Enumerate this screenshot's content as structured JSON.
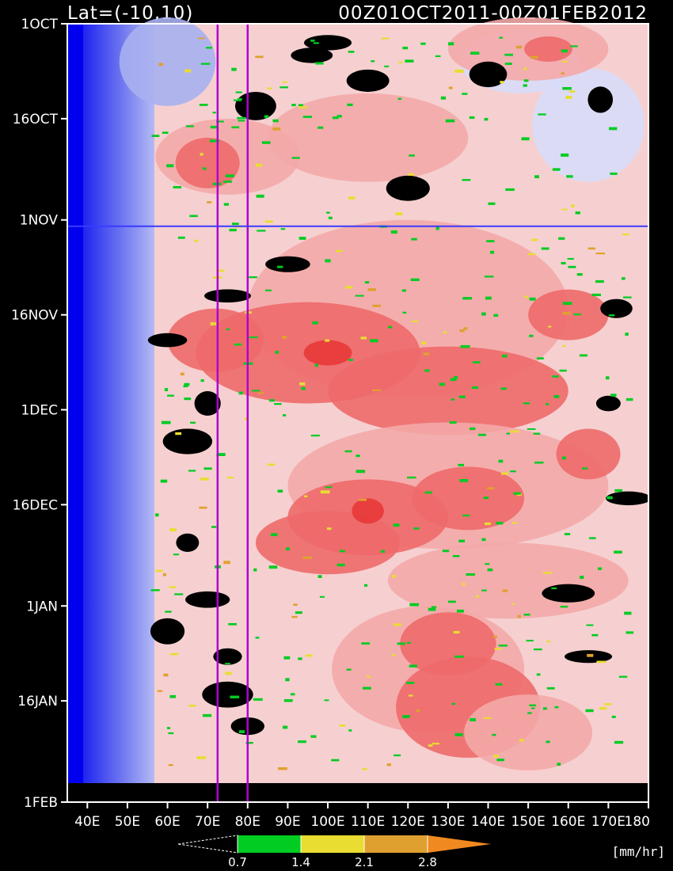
{
  "chart_data": {
    "type": "heatmap",
    "title_left": "Lat=(-10,10)",
    "title_right": "00Z01OCT2011-00Z01FEB2012",
    "x_ticks": [
      "40E",
      "50E",
      "60E",
      "70E",
      "80E",
      "90E",
      "100E",
      "110E",
      "120E",
      "130E",
      "140E",
      "150E",
      "160E",
      "170E",
      "180"
    ],
    "x_tick_values": [
      40,
      50,
      60,
      70,
      80,
      90,
      100,
      110,
      120,
      130,
      140,
      150,
      160,
      170,
      180
    ],
    "xlim": [
      35,
      180
    ],
    "y_ticks": [
      "1OCT",
      "16OCT",
      "1NOV",
      "16NOV",
      "1DEC",
      "16DEC",
      "1JAN",
      "16JAN",
      "1FEB"
    ],
    "y_tick_values": [
      0,
      15,
      31,
      46,
      61,
      76,
      92,
      107,
      123
    ],
    "ylim": [
      0,
      123
    ],
    "data_end_day": 120,
    "vertical_lines_lon": [
      72.5,
      80
    ],
    "vertical_line_color": "#b000d0",
    "horizontal_line_day": 32,
    "horizontal_line_color": "#3a3aff",
    "colorbar": {
      "levels": [
        "0.7",
        "1.4",
        "2.1",
        "2.8"
      ],
      "level_values": [
        0.7,
        1.4,
        2.1,
        2.8
      ],
      "colors": [
        "#00cc22",
        "#e8dd30",
        "#e0a030",
        "#f08a20"
      ],
      "units": "[mm/hr]"
    },
    "background_colors": {
      "very_low": "#0000ee",
      "low": "#6470f0",
      "mid_low": "#a8b0f0",
      "light": "#d8dcf8",
      "pink_light": "#f8d4d4",
      "pink": "#f4a8a8",
      "red": "#ee6a6a",
      "dark_red": "#e83838",
      "no_data": "#000000"
    }
  }
}
